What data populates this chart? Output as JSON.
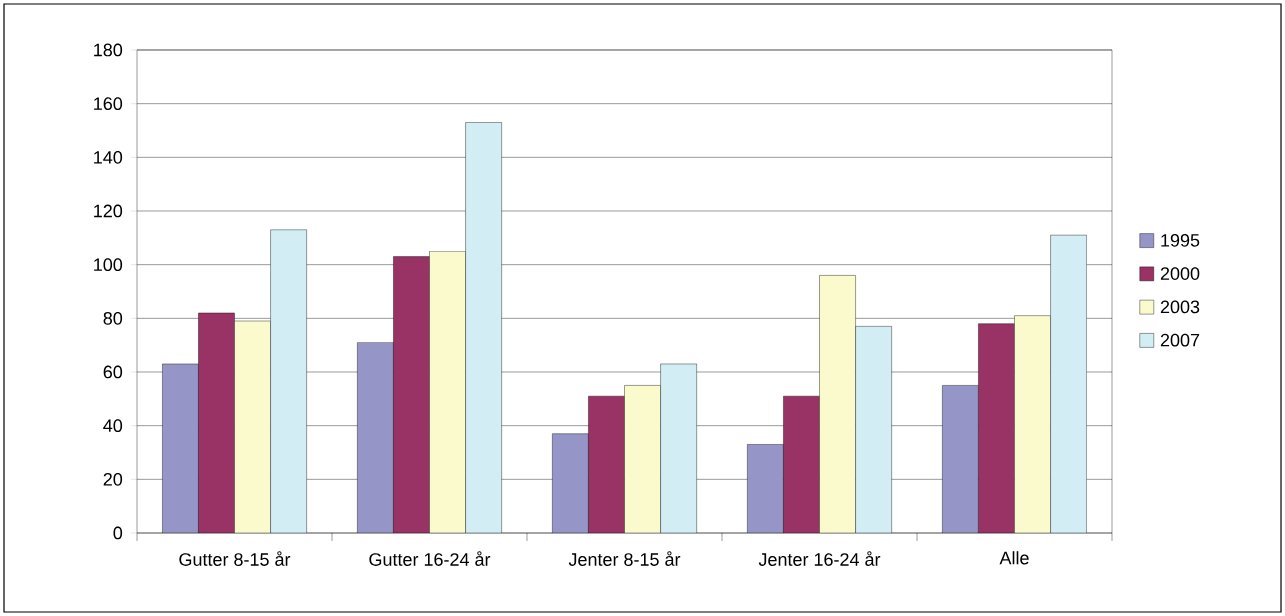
{
  "chart_data": {
    "type": "bar",
    "categories": [
      "Gutter 8-15 år",
      "Gutter 16-24 år",
      "Jenter 8-15 år",
      "Jenter 16-24 år",
      "Alle"
    ],
    "series": [
      {
        "name": "1995",
        "color": "#9595c8",
        "values": [
          63,
          71,
          37,
          33,
          55
        ]
      },
      {
        "name": "2000",
        "color": "#993366",
        "values": [
          82,
          103,
          51,
          51,
          78
        ]
      },
      {
        "name": "2003",
        "color": "#fafacc",
        "values": [
          79,
          105,
          55,
          96,
          81
        ]
      },
      {
        "name": "2007",
        "color": "#d3edf4",
        "values": [
          113,
          153,
          63,
          77,
          111
        ]
      }
    ],
    "ylim": [
      0,
      180
    ],
    "yticks": [
      0,
      20,
      40,
      60,
      80,
      100,
      120,
      140,
      160,
      180
    ],
    "grid": "y",
    "legend": "right"
  }
}
